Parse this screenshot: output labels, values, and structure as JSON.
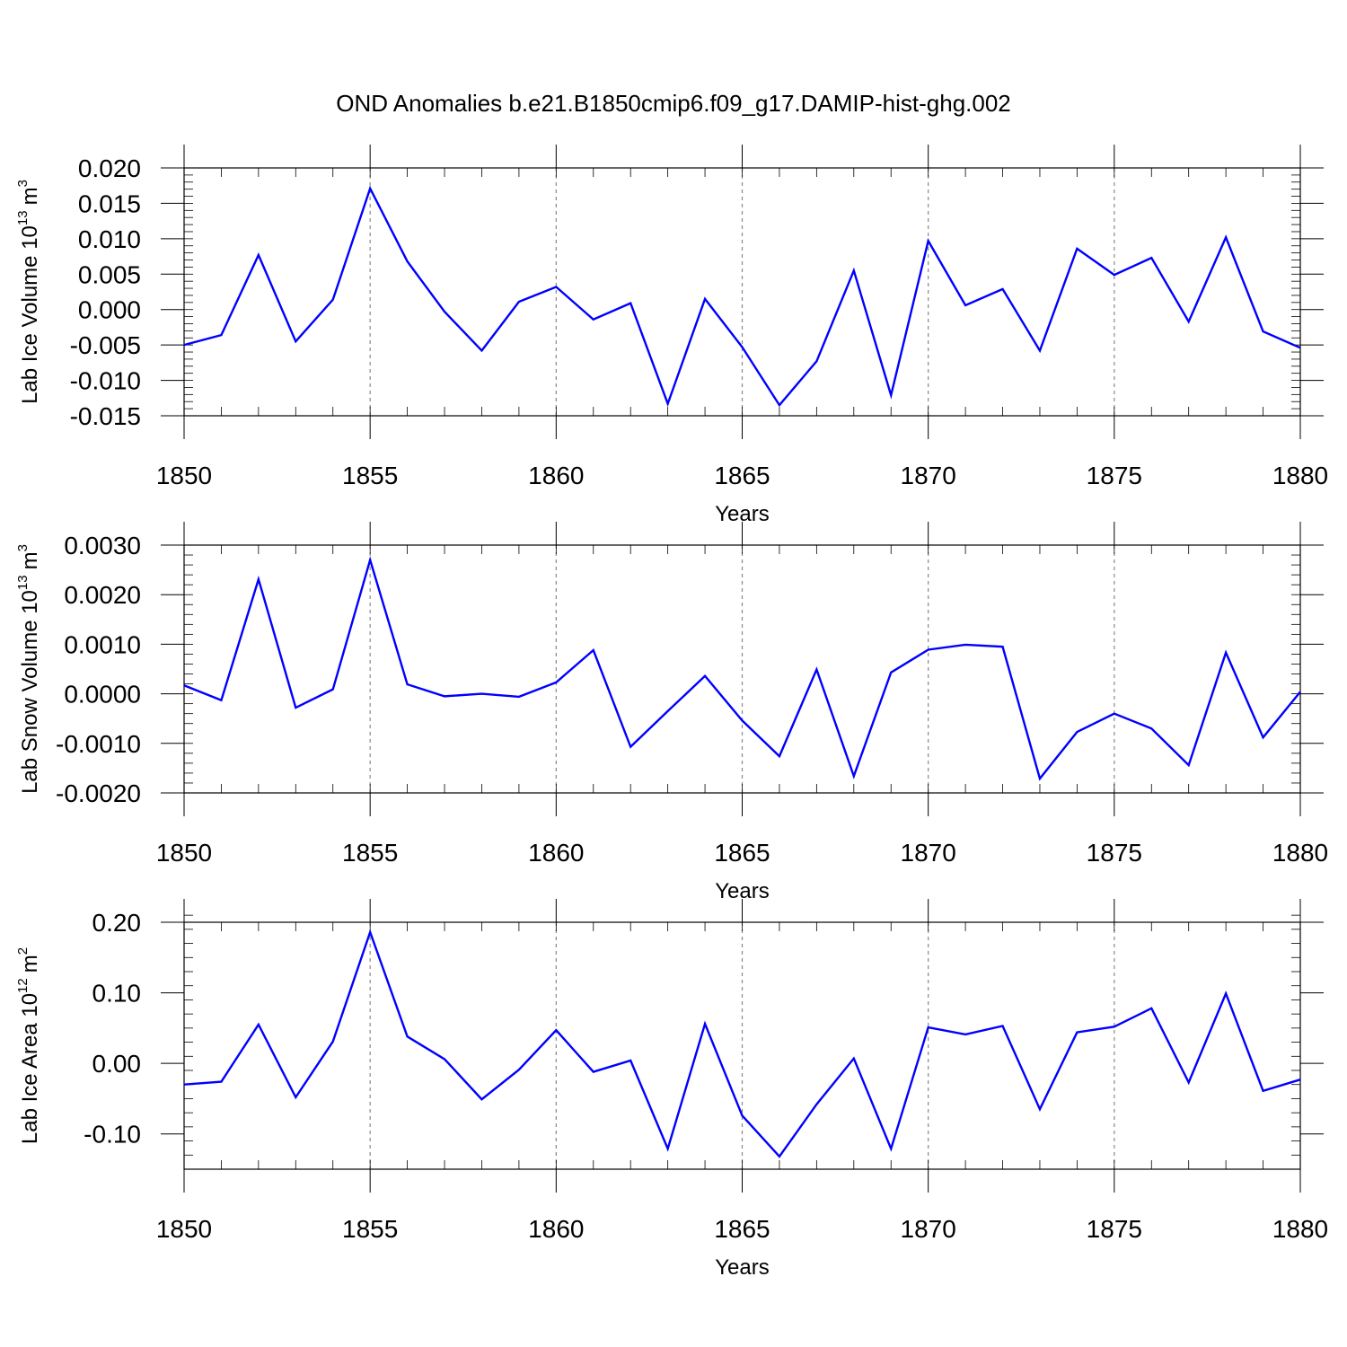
{
  "figure_title": "OND Anomalies b.e21.B1850cmip6.f09_g17.DAMIP-hist-ghg.002",
  "colors": {
    "series": "#0000ff",
    "grid": "#888888",
    "axes": "#000000"
  },
  "chart_data": [
    {
      "type": "line",
      "title": "",
      "xlabel": "Years",
      "ylabel": "Lab Ice Volume 10",
      "ylabel_exponent": "13",
      "ylabel_unit": "m",
      "ylabel_unit_power": "3",
      "xlim": [
        1850,
        1880
      ],
      "ylim": [
        -0.015,
        0.02
      ],
      "x_ticks": [
        1850,
        1855,
        1860,
        1865,
        1870,
        1875,
        1880
      ],
      "x_tick_labels": [
        "1850",
        "1855",
        "1860",
        "1865",
        "1870",
        "1875",
        "1880"
      ],
      "y_ticks": [
        -0.015,
        -0.01,
        -0.005,
        0.0,
        0.005,
        0.01,
        0.015,
        0.02
      ],
      "y_tick_labels": [
        "-0.015",
        "-0.010",
        "-0.005",
        "0.000",
        "0.005",
        "0.010",
        "0.015",
        "0.020"
      ],
      "y_minor_step": 0.001,
      "grid": "vertical dashed at 1855, 1860, 1865, 1870, 1875",
      "x": [
        1850,
        1851,
        1852,
        1853,
        1854,
        1855,
        1856,
        1857,
        1858,
        1859,
        1860,
        1861,
        1862,
        1863,
        1864,
        1865,
        1866,
        1867,
        1868,
        1869,
        1870,
        1871,
        1872,
        1873,
        1874,
        1875,
        1876,
        1877,
        1878,
        1879,
        1880
      ],
      "series": [
        {
          "values": [
            -0.005,
            -0.0036,
            0.0077,
            -0.0045,
            0.0014,
            0.0171,
            0.0068,
            -0.0003,
            -0.0058,
            0.0011,
            0.0032,
            -0.0014,
            0.0009,
            -0.0133,
            0.0015,
            -0.0053,
            -0.0135,
            -0.0073,
            0.0055,
            -0.0121,
            0.0097,
            0.0006,
            0.0029,
            -0.0058,
            0.0086,
            0.0049,
            0.0073,
            -0.0017,
            0.0102,
            -0.0031,
            -0.0054
          ]
        }
      ]
    },
    {
      "type": "line",
      "title": "",
      "xlabel": "Years",
      "ylabel": "Lab Snow Volume 10",
      "ylabel_exponent": "13",
      "ylabel_unit": "m",
      "ylabel_unit_power": "3",
      "xlim": [
        1850,
        1880
      ],
      "ylim": [
        -0.002,
        0.003
      ],
      "x_ticks": [
        1850,
        1855,
        1860,
        1865,
        1870,
        1875,
        1880
      ],
      "x_tick_labels": [
        "1850",
        "1855",
        "1860",
        "1865",
        "1870",
        "1875",
        "1880"
      ],
      "y_ticks": [
        -0.002,
        -0.001,
        0.0,
        0.001,
        0.002,
        0.003
      ],
      "y_tick_labels": [
        "-0.0020",
        "-0.0010",
        "0.0000",
        "0.0010",
        "0.0020",
        "0.0030"
      ],
      "y_minor_step": 0.0002,
      "grid": "vertical dashed at 1855, 1860, 1865, 1870, 1875",
      "x": [
        1850,
        1851,
        1852,
        1853,
        1854,
        1855,
        1856,
        1857,
        1858,
        1859,
        1860,
        1861,
        1862,
        1863,
        1864,
        1865,
        1866,
        1867,
        1868,
        1869,
        1870,
        1871,
        1872,
        1873,
        1874,
        1875,
        1876,
        1877,
        1878,
        1879,
        1880
      ],
      "series": [
        {
          "values": [
            0.00017,
            -0.00013,
            0.00231,
            -0.00028,
            9e-05,
            0.0027,
            0.00019,
            -5e-05,
            0.0,
            -6e-05,
            0.00023,
            0.00088,
            -0.00107,
            -0.00035,
            0.00036,
            -0.00054,
            -0.00126,
            0.00049,
            -0.00166,
            0.00043,
            0.00089,
            0.00099,
            0.00095,
            -0.00171,
            -0.00077,
            -0.0004,
            -0.0007,
            -0.00144,
            0.00083,
            -0.00088,
            4e-05
          ]
        }
      ]
    },
    {
      "type": "line",
      "title": "",
      "xlabel": "Years",
      "ylabel": "Lab Ice Area 10",
      "ylabel_exponent": "12",
      "ylabel_unit": "m",
      "ylabel_unit_power": "2",
      "xlim": [
        1850,
        1880
      ],
      "ylim": [
        -0.15,
        0.2
      ],
      "x_ticks": [
        1850,
        1855,
        1860,
        1865,
        1870,
        1875,
        1880
      ],
      "x_tick_labels": [
        "1850",
        "1855",
        "1860",
        "1865",
        "1870",
        "1875",
        "1880"
      ],
      "y_ticks": [
        -0.1,
        0.0,
        0.1,
        0.2
      ],
      "y_tick_labels": [
        "-0.10",
        "0.00",
        "0.10",
        "0.20"
      ],
      "y_minor_step": 0.02,
      "grid": "vertical dashed at 1855, 1860, 1865, 1870, 1875",
      "x": [
        1850,
        1851,
        1852,
        1853,
        1854,
        1855,
        1856,
        1857,
        1858,
        1859,
        1860,
        1861,
        1862,
        1863,
        1864,
        1865,
        1866,
        1867,
        1868,
        1869,
        1870,
        1871,
        1872,
        1873,
        1874,
        1875,
        1876,
        1877,
        1878,
        1879,
        1880
      ],
      "series": [
        {
          "values": [
            -0.03,
            -0.026,
            0.055,
            -0.048,
            0.031,
            0.186,
            0.038,
            0.006,
            -0.051,
            -0.009,
            0.047,
            -0.012,
            0.004,
            -0.121,
            0.056,
            -0.074,
            -0.132,
            -0.058,
            0.007,
            -0.121,
            0.051,
            0.041,
            0.053,
            -0.065,
            0.044,
            0.052,
            0.078,
            -0.027,
            0.099,
            -0.039,
            -0.023
          ]
        }
      ]
    }
  ]
}
